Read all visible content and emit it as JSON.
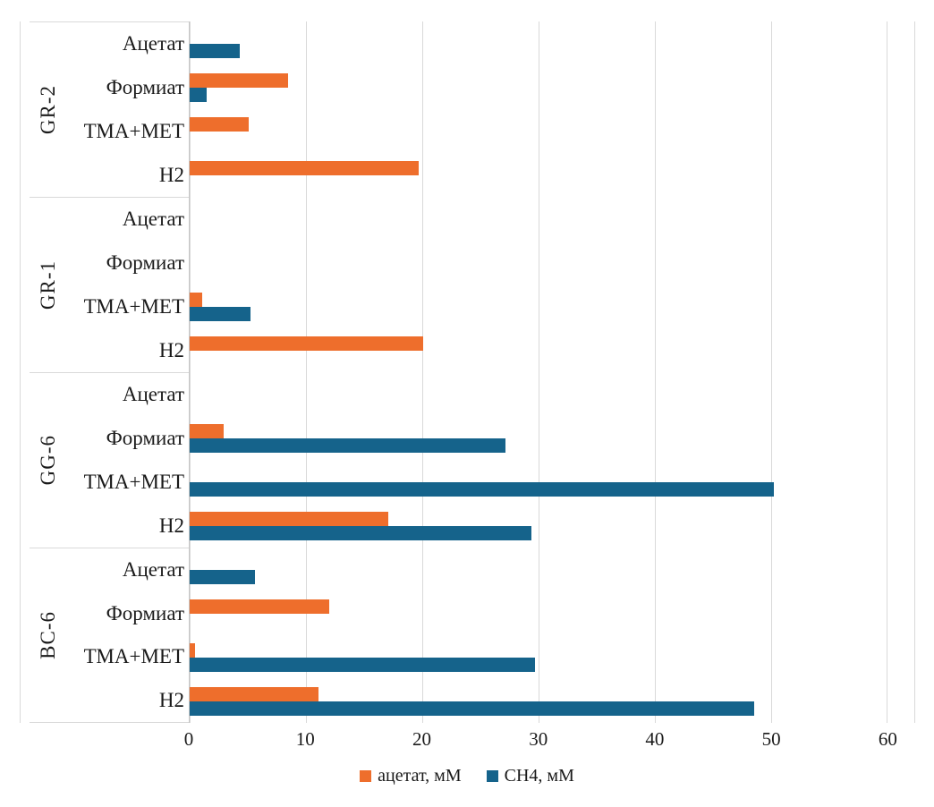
{
  "chart_data": {
    "type": "bar",
    "orientation": "horizontal",
    "title": "",
    "xlabel": "",
    "ylabel": "",
    "x_axis": {
      "min": 0,
      "max": 60,
      "ticks": [
        0,
        10,
        20,
        30,
        40,
        50,
        60
      ],
      "max_extent": 62.35,
      "grid": true
    },
    "legend_position": "bottom",
    "series_meta": [
      {
        "key": "acetate",
        "name": "ацетат, мМ",
        "color": "#ee6e2c"
      },
      {
        "key": "ch4",
        "name": "CH4, мМ",
        "color": "#15638b"
      }
    ],
    "row_order_note": "groups listed top to bottom, rows listed top to bottom; values in mM",
    "groups": [
      {
        "label": "GR-2",
        "rows": [
          {
            "label": "Ацетат",
            "acetate": 0,
            "ch4": 4.3
          },
          {
            "label": "Формиат",
            "acetate": 8.5,
            "ch4": 1.5
          },
          {
            "label": "ТМА+МЕТ",
            "acetate": 5.1,
            "ch4": 0
          },
          {
            "label": "Н2",
            "acetate": 19.7,
            "ch4": 0
          }
        ]
      },
      {
        "label": "GR-1",
        "rows": [
          {
            "label": "Ацетат",
            "acetate": 0,
            "ch4": 0
          },
          {
            "label": "Формиат",
            "acetate": 0,
            "ch4": 0
          },
          {
            "label": "ТМА+МЕТ",
            "acetate": 1.1,
            "ch4": 5.2
          },
          {
            "label": "Н2",
            "acetate": 20.1,
            "ch4": 0
          }
        ]
      },
      {
        "label": "GG-6",
        "rows": [
          {
            "label": "Ацетат",
            "acetate": 0,
            "ch4": 0
          },
          {
            "label": "Формиат",
            "acetate": 2.9,
            "ch4": 27.2
          },
          {
            "label": "ТМА+МЕТ",
            "acetate": 0,
            "ch4": 50.3
          },
          {
            "label": "Н2",
            "acetate": 17.1,
            "ch4": 29.4
          }
        ]
      },
      {
        "label": "BC-6",
        "rows": [
          {
            "label": "Ацетат",
            "acetate": 0,
            "ch4": 5.6
          },
          {
            "label": "Формиат",
            "acetate": 12.0,
            "ch4": 0
          },
          {
            "label": "ТМА+МЕТ",
            "acetate": 0.5,
            "ch4": 29.7
          },
          {
            "label": "Н2",
            "acetate": 11.1,
            "ch4": 48.6
          }
        ]
      }
    ],
    "colors": {
      "gridline": "#d9d9d9",
      "axis_line": "#c6c6c6",
      "text": "#1a1a1a",
      "background": "#ffffff"
    }
  },
  "legend": {
    "acetate_label": "ацетат, мМ",
    "ch4_label": "CH4, мМ"
  }
}
